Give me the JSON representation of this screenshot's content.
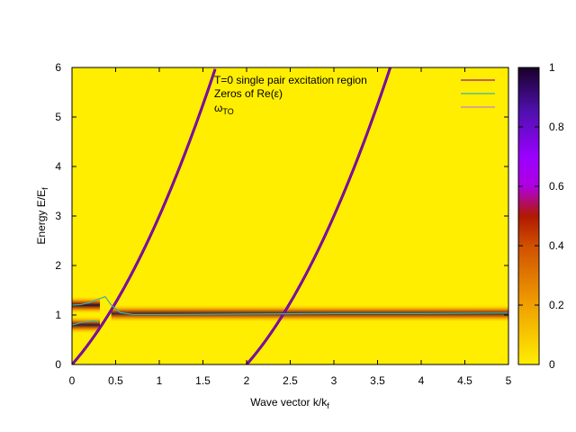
{
  "chart_data": {
    "type": "heatmap",
    "title": "",
    "xlabel": "Wave vector k/k",
    "xlabel_sub": "f",
    "ylabel": "Energy E/E",
    "ylabel_sub": "f",
    "xlim": [
      0,
      5
    ],
    "ylim": [
      0,
      6
    ],
    "x_ticks": [
      "0",
      "0.5",
      "1",
      "1.5",
      "2",
      "2.5",
      "3",
      "3.5",
      "4",
      "4.5",
      "5"
    ],
    "y_ticks": [
      "0",
      "1",
      "2",
      "3",
      "4",
      "5",
      "6"
    ],
    "background_color": "#ffee00",
    "colorbar": {
      "range": [
        0,
        1
      ],
      "ticks": [
        "0",
        "0.2",
        "0.4",
        "0.6",
        "0.8",
        "1"
      ],
      "colors": [
        "#ffee00",
        "#f08010",
        "#c03000",
        "#a000ff",
        "#5010c0",
        "#1a0030"
      ]
    },
    "legend": {
      "position": "top-right",
      "entries": [
        {
          "label": "T=0 single pair excitation region",
          "color": "#a0109a"
        },
        {
          "label": "Zeros of Re(ε)",
          "color": "#40b0a0"
        },
        {
          "label": "ω",
          "label_sub": "TO",
          "color": "#c080d0"
        }
      ]
    },
    "series": [
      {
        "name": "T=0 single pair excitation region",
        "kind": "boundary",
        "x": [
          0,
          0.25,
          0.5,
          0.75,
          1.0,
          1.25,
          1.5,
          1.64
        ],
        "y": [
          0,
          0.5625,
          1.25,
          2.0625,
          3.0,
          4.0625,
          5.25,
          6.0
        ]
      },
      {
        "name": "T=0 single pair excitation region (lower edge)",
        "kind": "boundary",
        "x": [
          2.0,
          2.25,
          2.5,
          2.75,
          3.0,
          3.25,
          3.5,
          3.65
        ],
        "y": [
          0,
          0.5625,
          1.25,
          2.0625,
          3.0,
          4.0625,
          5.25,
          5.97
        ]
      },
      {
        "name": "Zeros of Re(ε) upper",
        "kind": "dispersion",
        "x": [
          0,
          0.1,
          0.2,
          0.3,
          0.38,
          0.45,
          0.55,
          0.7,
          1.0,
          2.0,
          3.0,
          4.0,
          5.0
        ],
        "y": [
          1.2,
          1.21,
          1.25,
          1.32,
          1.37,
          1.2,
          1.05,
          1.01,
          1.01,
          1.02,
          1.03,
          1.03,
          1.04
        ]
      },
      {
        "name": "Zeros of Re(ε) lower",
        "kind": "dispersion",
        "x": [
          0,
          0.05,
          0.1,
          0.15,
          0.2,
          0.25,
          0.28,
          0.3
        ],
        "y": [
          0.8,
          0.82,
          0.85,
          0.86,
          0.87,
          0.88,
          0.87,
          0.85
        ]
      }
    ],
    "bands": [
      {
        "x_range": [
          0,
          0.32
        ],
        "y_center": 1.2,
        "intensity": 0.95
      },
      {
        "x_range": [
          0,
          0.32
        ],
        "y_center": 0.8,
        "intensity": 0.9
      },
      {
        "x_range": [
          0.45,
          5.0
        ],
        "y_center": 1.03,
        "intensity": 0.85
      }
    ]
  }
}
